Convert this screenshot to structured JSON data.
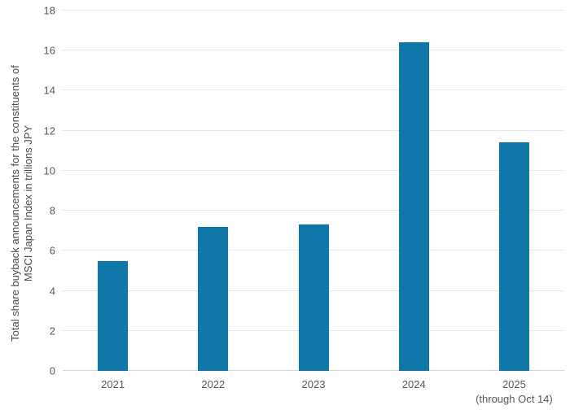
{
  "chart_data": {
    "type": "bar",
    "title": "",
    "xlabel": "",
    "ylabel": "Total share buyback announcements for the constituents of MSCI Japan Index in trillions JPY",
    "ylabel_lines": [
      "Total share buyback announcements for the constituents of",
      "MSCI Japan Index in trillions JPY"
    ],
    "categories": [
      {
        "label": "2021",
        "sublabel": ""
      },
      {
        "label": "2022",
        "sublabel": ""
      },
      {
        "label": "2023",
        "sublabel": ""
      },
      {
        "label": "2024",
        "sublabel": ""
      },
      {
        "label": "2025",
        "sublabel": "(through Oct 14)"
      }
    ],
    "values": [
      5.5,
      7.2,
      7.3,
      16.4,
      11.4
    ],
    "ylim": [
      0,
      18
    ],
    "yticks": [
      0,
      2,
      4,
      6,
      8,
      10,
      12,
      14,
      16,
      18
    ],
    "grid": true,
    "legend": "none",
    "colors": {
      "bar": "#0f78a8",
      "gridline": "#e7e7e7",
      "axis_line": "#d6d6d6",
      "tick_label": "#595959",
      "axis_title": "#4d4d4d",
      "background": "#ffffff"
    }
  }
}
